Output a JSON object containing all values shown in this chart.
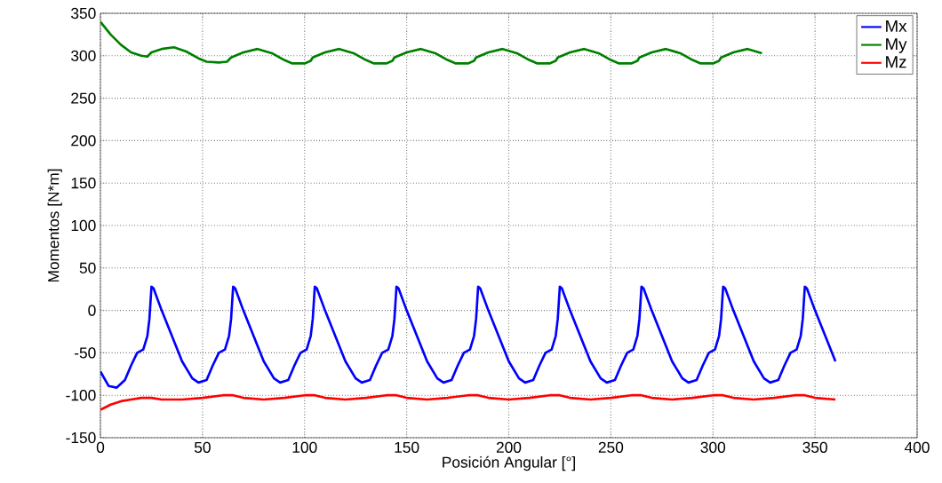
{
  "chart_data": {
    "type": "line",
    "xlabel": "Posición Angular [°]",
    "ylabel": "Momentos [N*m]",
    "xlim": [
      0,
      400
    ],
    "ylim": [
      -150,
      350
    ],
    "xticks": [
      0,
      50,
      100,
      150,
      200,
      250,
      300,
      350,
      400
    ],
    "yticks": [
      -150,
      -100,
      -50,
      0,
      50,
      100,
      150,
      200,
      250,
      300,
      350
    ],
    "grid": true,
    "legend": "top right",
    "line_style": "solid",
    "marker": "none",
    "series": [
      {
        "name": "Mx",
        "color": "#0000ff",
        "x": [
          0,
          4,
          8,
          12,
          15,
          18,
          21,
          23,
          24,
          25,
          26,
          30,
          35,
          40,
          45,
          48,
          52,
          55,
          58,
          61,
          63,
          64,
          65,
          66,
          70,
          75,
          80,
          85,
          88,
          92,
          95,
          98,
          101,
          103,
          104,
          105,
          106,
          110,
          115,
          120,
          125,
          128,
          132,
          135,
          138,
          141,
          143,
          144,
          145,
          146,
          150,
          155,
          160,
          165,
          168,
          172,
          175,
          178,
          181,
          183,
          184,
          185,
          186,
          190,
          195,
          200,
          205,
          208,
          212,
          215,
          218,
          221,
          223,
          224,
          225,
          226,
          230,
          235,
          240,
          245,
          248,
          252,
          255,
          258,
          261,
          263,
          264,
          265,
          266,
          270,
          275,
          280,
          285,
          288,
          292,
          295,
          298,
          301,
          303,
          304,
          305,
          306,
          310,
          315,
          320,
          325,
          328,
          332,
          335,
          338,
          341,
          343,
          344,
          345,
          346,
          350,
          355,
          360
        ],
        "values": [
          -72,
          -89,
          -91,
          -82,
          -65,
          -50,
          -46,
          -30,
          -10,
          28,
          26,
          0,
          -30,
          -60,
          -80,
          -85,
          -82,
          -65,
          -50,
          -46,
          -30,
          -10,
          28,
          26,
          0,
          -30,
          -60,
          -80,
          -85,
          -82,
          -65,
          -50,
          -46,
          -30,
          -10,
          28,
          26,
          0,
          -30,
          -60,
          -80,
          -85,
          -82,
          -65,
          -50,
          -46,
          -30,
          -10,
          28,
          26,
          0,
          -30,
          -60,
          -80,
          -85,
          -82,
          -65,
          -50,
          -46,
          -30,
          -10,
          28,
          26,
          0,
          -30,
          -60,
          -80,
          -85,
          -82,
          -65,
          -50,
          -46,
          -30,
          -10,
          28,
          26,
          0,
          -30,
          -60,
          -80,
          -85,
          -82,
          -65,
          -50,
          -46,
          -30,
          -10,
          28,
          26,
          0,
          -30,
          -60,
          -80,
          -85,
          -82,
          -65,
          -50,
          -46,
          -30,
          -10,
          28,
          26,
          0,
          -30,
          -60,
          -80,
          -85,
          -82,
          -65,
          -50,
          -46,
          -30,
          -10,
          28,
          26,
          0,
          -30,
          -60
        ]
      },
      {
        "name": "My",
        "color": "#008000",
        "x": [
          0,
          5,
          10,
          15,
          20,
          23,
          25,
          30,
          36,
          42,
          48,
          52,
          58,
          62,
          64,
          70,
          77,
          84,
          90,
          94,
          100,
          103,
          104,
          110,
          117,
          124,
          130,
          134,
          140,
          143,
          144,
          150,
          157,
          164,
          170,
          174,
          180,
          183,
          184,
          190,
          197,
          204,
          210,
          214,
          220,
          223,
          224,
          230,
          237,
          244,
          250,
          254,
          260,
          263,
          264,
          270,
          277,
          284,
          290,
          294,
          300,
          303,
          304,
          310,
          317,
          324
        ],
        "values": [
          340,
          325,
          313,
          304,
          300,
          299,
          304,
          308,
          310,
          305,
          297,
          293,
          292,
          293,
          298,
          304,
          308,
          303,
          295,
          291,
          291,
          294,
          298,
          304,
          308,
          303,
          295,
          291,
          291,
          294,
          298,
          304,
          308,
          303,
          295,
          291,
          291,
          294,
          298,
          304,
          308,
          303,
          295,
          291,
          291,
          294,
          298,
          304,
          308,
          303,
          295,
          291,
          291,
          294,
          298,
          304,
          308,
          303,
          295,
          291,
          291,
          294,
          298,
          304,
          308,
          303
        ]
      },
      {
        "name": "Mz",
        "color": "#ff0000",
        "x": [
          0,
          5,
          10,
          15,
          20,
          25,
          30,
          40,
          50,
          60,
          65,
          70,
          80,
          90,
          100,
          105,
          110,
          120,
          130,
          140,
          145,
          150,
          160,
          170,
          180,
          185,
          190,
          200,
          210,
          220,
          225,
          230,
          240,
          250,
          260,
          265,
          270,
          280,
          290,
          300,
          305,
          310,
          320,
          330,
          340,
          345,
          350,
          360
        ],
        "values": [
          -117,
          -111,
          -107,
          -105,
          -103,
          -103,
          -105,
          -105,
          -103,
          -100,
          -100,
          -103,
          -105,
          -103,
          -100,
          -100,
          -103,
          -105,
          -103,
          -100,
          -100,
          -103,
          -105,
          -103,
          -100,
          -100,
          -103,
          -105,
          -103,
          -100,
          -100,
          -103,
          -105,
          -103,
          -100,
          -100,
          -103,
          -105,
          -103,
          -100,
          -100,
          -103,
          -105,
          -103,
          -100,
          -100,
          -103,
          -105
        ]
      }
    ]
  }
}
